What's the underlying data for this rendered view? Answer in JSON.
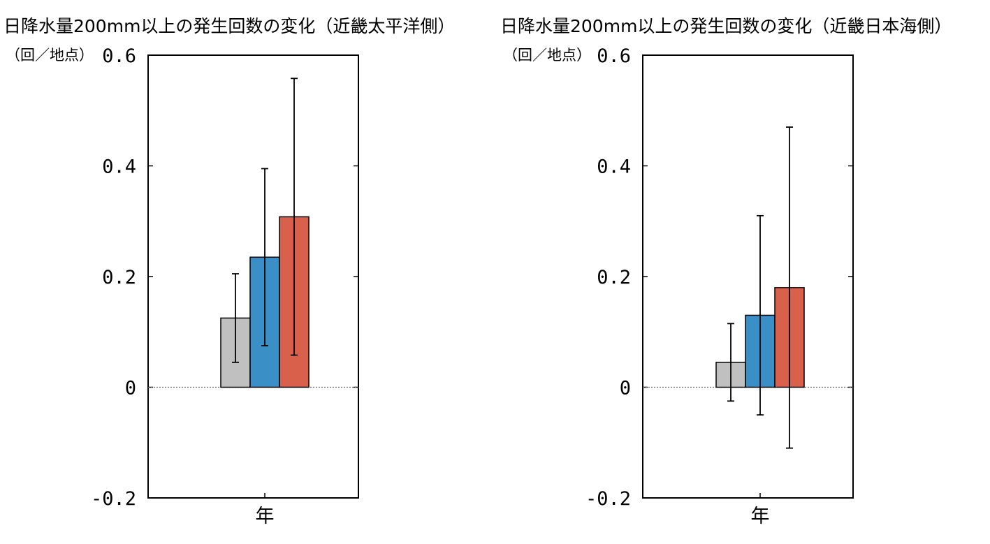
{
  "chart_data": [
    {
      "type": "bar",
      "title": "日降水量200mm以上の発生回数の変化（近畿太平洋側）",
      "ylabel": "（回／地点）",
      "xlabel": "",
      "categories": [
        "年"
      ],
      "ylim": [
        -0.2,
        0.6
      ],
      "yticks": [
        -0.2,
        0,
        0.2,
        0.4,
        0.6
      ],
      "ytick_labels": [
        "-0.2",
        "0",
        "0.2",
        "0.4",
        "0.6"
      ],
      "grid": false,
      "zero_line": "dotted",
      "series": [
        {
          "color": "#c0c0c0",
          "values": [
            0.125
          ],
          "error_low": [
            0.045
          ],
          "error_high": [
            0.205
          ]
        },
        {
          "color": "#3a8fc6",
          "values": [
            0.235
          ],
          "error_low": [
            0.075
          ],
          "error_high": [
            0.395
          ]
        },
        {
          "color": "#d9604a",
          "values": [
            0.308
          ],
          "error_low": [
            0.058
          ],
          "error_high": [
            0.558
          ]
        }
      ]
    },
    {
      "type": "bar",
      "title": "日降水量200mm以上の発生回数の変化（近畿日本海側）",
      "ylabel": "（回／地点）",
      "xlabel": "",
      "categories": [
        "年"
      ],
      "ylim": [
        -0.2,
        0.6
      ],
      "yticks": [
        -0.2,
        0,
        0.2,
        0.4,
        0.6
      ],
      "ytick_labels": [
        "-0.2",
        "0",
        "0.2",
        "0.4",
        "0.6"
      ],
      "grid": false,
      "zero_line": "dotted",
      "series": [
        {
          "color": "#c0c0c0",
          "values": [
            0.045
          ],
          "error_low": [
            -0.025
          ],
          "error_high": [
            0.115
          ]
        },
        {
          "color": "#3a8fc6",
          "values": [
            0.13
          ],
          "error_low": [
            -0.05
          ],
          "error_high": [
            0.31
          ]
        },
        {
          "color": "#d9604a",
          "values": [
            0.18
          ],
          "error_low": [
            -0.11
          ],
          "error_high": [
            0.47
          ]
        }
      ]
    }
  ]
}
